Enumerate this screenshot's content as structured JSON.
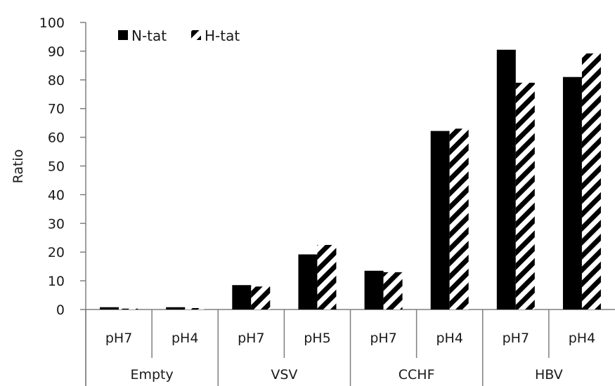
{
  "chart_data": {
    "type": "bar",
    "ylabel": "Ratio",
    "ylim": [
      0,
      100
    ],
    "yticks": [
      0,
      10,
      20,
      30,
      40,
      50,
      60,
      70,
      80,
      90,
      100
    ],
    "legend_position": "top-left",
    "grid": false,
    "categories": [
      "pH7",
      "pH4",
      "pH7",
      "pH5",
      "pH7",
      "pH4",
      "pH7",
      "pH4"
    ],
    "groups": [
      {
        "label": "Empty",
        "span": 2
      },
      {
        "label": "VSV",
        "span": 2
      },
      {
        "label": "CCHF",
        "span": 2
      },
      {
        "label": "HBV",
        "span": 2
      }
    ],
    "series": [
      {
        "name": "N-tat",
        "style": "solid",
        "color": "#000000",
        "values": [
          0.8,
          0.8,
          8.5,
          19.2,
          13.5,
          62.2,
          90.5,
          81.0
        ]
      },
      {
        "name": "H-tat",
        "style": "hatched",
        "color": "#000000",
        "values": [
          0.3,
          0.5,
          8.0,
          22.5,
          13.0,
          63.0,
          79.0,
          89.2
        ]
      }
    ]
  }
}
